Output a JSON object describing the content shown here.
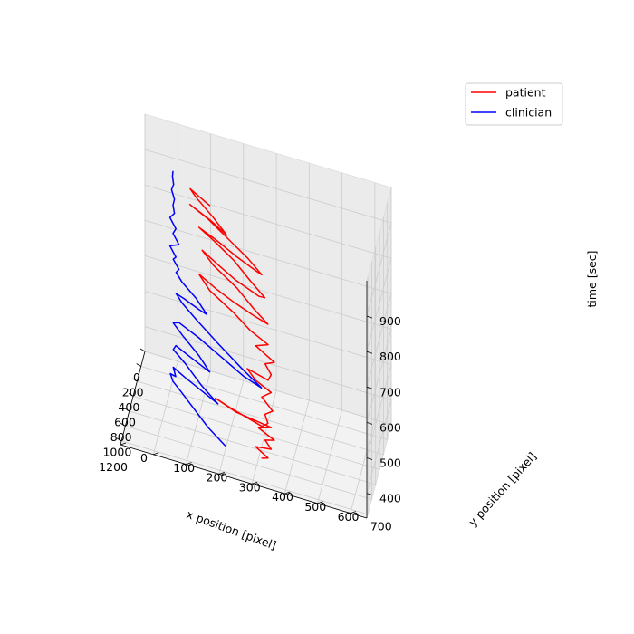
{
  "chart_data": {
    "type": "line3d",
    "xlabel": "x position [pixel]",
    "ylabel": "y position [pixel]",
    "zlabel": "time [sec]",
    "xlim": [
      0,
      1250
    ],
    "ylim": [
      0,
      750
    ],
    "zlim": [
      330,
      1000
    ],
    "x_ticks": [
      "0",
      "200",
      "400",
      "600",
      "800",
      "1000",
      "1200"
    ],
    "y_ticks": [
      "0",
      "100",
      "200",
      "300",
      "400",
      "500",
      "600",
      "700"
    ],
    "z_ticks": [
      "400",
      "500",
      "600",
      "700",
      "800",
      "900"
    ],
    "legend_position": "top-right",
    "grid": true,
    "series": [
      {
        "name": "patient",
        "color": "#ff0000",
        "points": [
          [
            1070,
            420,
            370
          ],
          [
            1090,
            440,
            380
          ],
          [
            1060,
            400,
            395
          ],
          [
            1100,
            450,
            410
          ],
          [
            1075,
            430,
            425
          ],
          [
            1110,
            460,
            440
          ],
          [
            1080,
            410,
            455
          ],
          [
            1095,
            450,
            470
          ],
          [
            900,
            330,
            440
          ],
          [
            760,
            260,
            430
          ],
          [
            900,
            320,
            445
          ],
          [
            1070,
            420,
            460
          ],
          [
            1100,
            440,
            480
          ],
          [
            1085,
            430,
            500
          ],
          [
            1105,
            455,
            520
          ],
          [
            1080,
            420,
            545
          ],
          [
            1100,
            450,
            570
          ],
          [
            1070,
            400,
            585
          ],
          [
            980,
            370,
            590
          ],
          [
            1090,
            440,
            600
          ],
          [
            1100,
            450,
            620
          ],
          [
            1075,
            430,
            640
          ],
          [
            1110,
            460,
            660
          ],
          [
            1060,
            400,
            680
          ],
          [
            1090,
            440,
            700
          ],
          [
            1000,
            380,
            705
          ],
          [
            860,
            320,
            710
          ],
          [
            720,
            240,
            720
          ],
          [
            600,
            200,
            730
          ],
          [
            740,
            260,
            735
          ],
          [
            880,
            320,
            745
          ],
          [
            1020,
            390,
            755
          ],
          [
            1100,
            440,
            760
          ],
          [
            1000,
            390,
            770
          ],
          [
            850,
            330,
            780
          ],
          [
            700,
            250,
            790
          ],
          [
            600,
            210,
            800
          ],
          [
            750,
            270,
            805
          ],
          [
            900,
            330,
            812
          ],
          [
            1050,
            410,
            820
          ],
          [
            1090,
            430,
            830
          ],
          [
            980,
            380,
            840
          ],
          [
            820,
            320,
            848
          ],
          [
            680,
            250,
            855
          ],
          [
            600,
            200,
            862
          ],
          [
            720,
            260,
            868
          ],
          [
            880,
            330,
            875
          ],
          [
            1020,
            400,
            882
          ],
          [
            1080,
            420,
            890
          ],
          [
            950,
            370,
            895
          ],
          [
            800,
            300,
            900
          ],
          [
            650,
            230,
            905
          ],
          [
            560,
            170,
            910
          ],
          [
            700,
            240,
            915
          ],
          [
            850,
            300,
            920
          ],
          [
            720,
            250,
            930
          ],
          [
            580,
            190,
            940
          ],
          [
            540,
            170,
            950
          ],
          [
            620,
            200,
            955
          ],
          [
            720,
            240,
            960
          ]
        ]
      },
      {
        "name": "clinician",
        "color": "#0000ff",
        "points": [
          [
            940,
            300,
            345
          ],
          [
            800,
            240,
            350
          ],
          [
            650,
            190,
            355
          ],
          [
            500,
            140,
            360
          ],
          [
            420,
            110,
            365
          ],
          [
            380,
            100,
            375
          ],
          [
            440,
            120,
            385
          ],
          [
            400,
            110,
            400
          ],
          [
            520,
            150,
            410
          ],
          [
            680,
            220,
            418
          ],
          [
            800,
            270,
            425
          ],
          [
            650,
            210,
            430
          ],
          [
            480,
            150,
            440
          ],
          [
            400,
            110,
            450
          ],
          [
            430,
            120,
            470
          ],
          [
            560,
            170,
            480
          ],
          [
            720,
            240,
            490
          ],
          [
            600,
            200,
            500
          ],
          [
            450,
            140,
            510
          ],
          [
            400,
            110,
            525
          ],
          [
            440,
            130,
            540
          ],
          [
            600,
            200,
            550
          ],
          [
            800,
            280,
            560
          ],
          [
            1000,
            360,
            570
          ],
          [
            1100,
            420,
            575
          ],
          [
            950,
            350,
            580
          ],
          [
            760,
            270,
            585
          ],
          [
            560,
            190,
            590
          ],
          [
            450,
            140,
            600
          ],
          [
            420,
            120,
            615
          ],
          [
            500,
            150,
            625
          ],
          [
            620,
            200,
            635
          ],
          [
            700,
            230,
            645
          ],
          [
            580,
            190,
            655
          ],
          [
            460,
            140,
            662
          ],
          [
            420,
            120,
            675
          ],
          [
            440,
            130,
            690
          ],
          [
            400,
            110,
            705
          ],
          [
            430,
            120,
            720
          ],
          [
            400,
            100,
            740
          ],
          [
            440,
            130,
            760
          ],
          [
            410,
            110,
            780
          ],
          [
            430,
            120,
            800
          ],
          [
            400,
            100,
            820
          ],
          [
            420,
            115,
            840
          ],
          [
            410,
            110,
            860
          ],
          [
            420,
            115,
            880
          ],
          [
            400,
            105,
            900
          ],
          [
            415,
            112,
            920
          ],
          [
            405,
            108,
            940
          ],
          [
            412,
            110,
            955
          ]
        ]
      }
    ]
  }
}
